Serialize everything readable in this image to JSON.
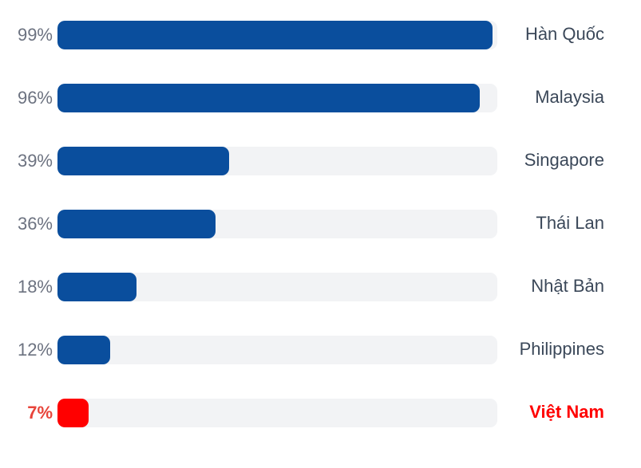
{
  "chart_data": {
    "type": "bar",
    "orientation": "horizontal",
    "title": "",
    "xlabel": "",
    "ylabel": "",
    "xlim": [
      0,
      100
    ],
    "grid": false,
    "legend": false,
    "categories": [
      "Hàn Quốc",
      "Malaysia",
      "Singapore",
      "Thái Lan",
      "Nhật Bản",
      "Philippines",
      "Việt Nam"
    ],
    "values": [
      99,
      96,
      39,
      36,
      18,
      12,
      7
    ],
    "rows": [
      {
        "percent_label": "99%",
        "country": "Hàn Quốc",
        "value": 99,
        "highlight": false
      },
      {
        "percent_label": "96%",
        "country": "Malaysia",
        "value": 96,
        "highlight": false
      },
      {
        "percent_label": "39%",
        "country": "Singapore",
        "value": 39,
        "highlight": false
      },
      {
        "percent_label": "36%",
        "country": "Thái Lan",
        "value": 36,
        "highlight": false
      },
      {
        "percent_label": "18%",
        "country": "Nhật Bản",
        "value": 18,
        "highlight": false
      },
      {
        "percent_label": "12%",
        "country": "Philippines",
        "value": 12,
        "highlight": false
      },
      {
        "percent_label": "7%",
        "country": "Việt Nam",
        "value": 7,
        "highlight": true
      }
    ],
    "colors": {
      "bar_default": "#0a4e9d",
      "bar_highlight": "#ff0000",
      "track": "#f2f3f5",
      "percent_label_default": "#6c7280",
      "percent_label_highlight": "#e8443a",
      "country_label_default": "#3b4859",
      "country_label_highlight": "#ff0000"
    }
  }
}
